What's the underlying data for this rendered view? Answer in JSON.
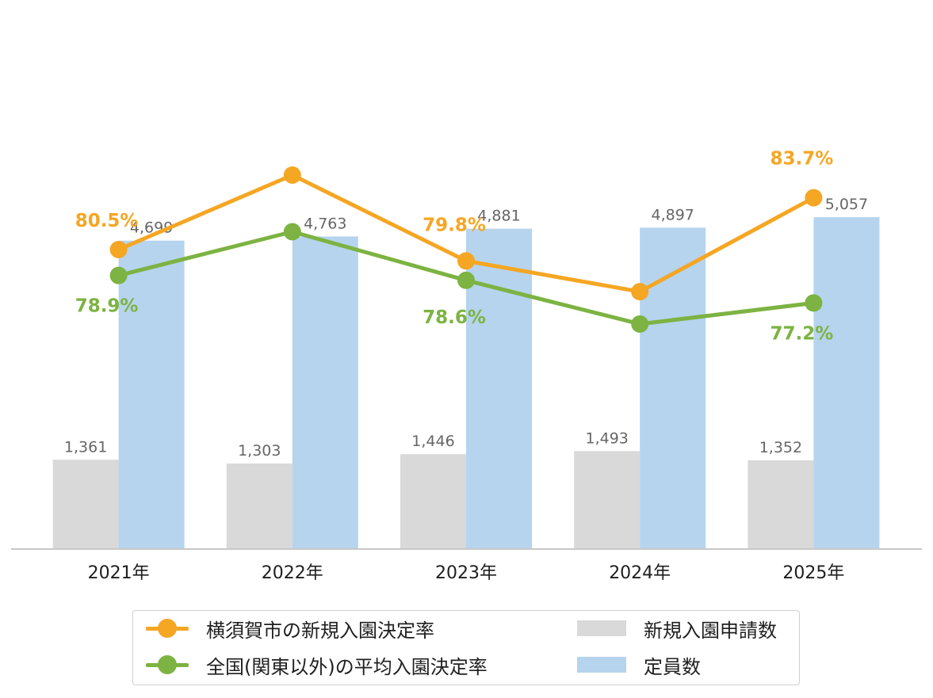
{
  "chart_data": {
    "type": "bar+line",
    "categories": [
      "2021年",
      "2022年",
      "2023年",
      "2024年",
      "2025年"
    ],
    "bar_series": [
      {
        "name": "新規入園申請数",
        "color": "#d9d9d9",
        "values": [
          1361,
          1303,
          1446,
          1493,
          1352
        ],
        "labels": [
          "1,361",
          "1,303",
          "1,446",
          "1,493",
          "1,352"
        ]
      },
      {
        "name": "定員数",
        "color": "#b6d4ee",
        "values": [
          4699,
          4763,
          4881,
          4897,
          5057
        ],
        "labels": [
          "4,699",
          "4,763",
          "4,881",
          "4,897",
          "5,057"
        ]
      }
    ],
    "line_series": [
      {
        "name": "横須賀市の新規入園決定率",
        "color": "#f5a623",
        "values": [
          80.5,
          85.1,
          79.8,
          77.9,
          83.7
        ],
        "labels": [
          "80.5%",
          "",
          "79.8%",
          "",
          "83.7%"
        ]
      },
      {
        "name": "全国(関東以外)の平均入園決定率",
        "color": "#7cb342",
        "values": [
          78.9,
          81.6,
          78.6,
          75.9,
          77.2
        ],
        "labels": [
          "78.9%",
          "",
          "78.6%",
          "",
          "77.2%"
        ]
      }
    ],
    "bar_ylim": [
      0,
      7400
    ],
    "line_ylim": [
      62,
      92
    ],
    "grid": false,
    "legend_position": "bottom"
  },
  "legend": {
    "items": [
      {
        "label": "横須賀市の新規入園決定率"
      },
      {
        "label": "全国(関東以外)の平均入園決定率"
      },
      {
        "label": "新規入園申請数"
      },
      {
        "label": "定員数"
      }
    ]
  }
}
